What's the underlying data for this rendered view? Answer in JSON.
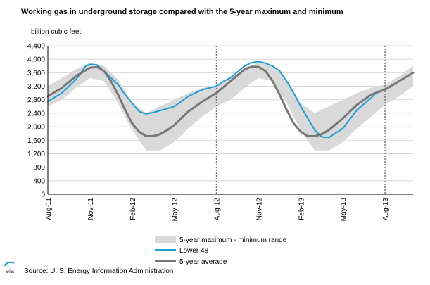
{
  "chart_data": {
    "type": "area",
    "title": "Working gas in underground storage compared with the 5-year maximum and minimum",
    "ylabel": "billion cubic feet",
    "xlabel": "",
    "ylim": [
      0,
      4400
    ],
    "yticks": [
      0,
      400,
      800,
      1200,
      1600,
      2000,
      2400,
      2800,
      3200,
      3600,
      4000,
      4400
    ],
    "ytick_labels": [
      "0",
      "400",
      "800",
      "1,200",
      "1,600",
      "2,000",
      "2,400",
      "2,800",
      "3,200",
      "3,600",
      "4,000",
      "4,400"
    ],
    "x_range": [
      0,
      26
    ],
    "x_unit": "months since Aug-11",
    "xticks": [
      {
        "x": 0,
        "label": "Aug-11"
      },
      {
        "x": 3,
        "label": "Nov-11"
      },
      {
        "x": 6,
        "label": "Feb-12"
      },
      {
        "x": 9,
        "label": "May-12"
      },
      {
        "x": 12,
        "label": "Aug-12"
      },
      {
        "x": 15,
        "label": "Nov-12"
      },
      {
        "x": 18,
        "label": "Feb-13"
      },
      {
        "x": 21,
        "label": "May-13"
      },
      {
        "x": 24,
        "label": "Aug-13"
      }
    ],
    "vertical_dividers": [
      12,
      24
    ],
    "grid": true,
    "legend_position": "bottom",
    "range_band": {
      "name": "5-year maximum - minimum range",
      "color": "#d9d9d9",
      "x": [
        0,
        1,
        2,
        3,
        4,
        5,
        6,
        7,
        8,
        9,
        10,
        11,
        12,
        13,
        14,
        15,
        16,
        17,
        18,
        19,
        20,
        21,
        22,
        23,
        24,
        25,
        26
      ],
      "max": [
        3200,
        3450,
        3700,
        3900,
        3800,
        3400,
        2700,
        2400,
        2600,
        2800,
        3000,
        3150,
        3200,
        3450,
        3700,
        3900,
        3800,
        3400,
        2700,
        2400,
        2600,
        2800,
        3000,
        3150,
        3250,
        3500,
        3800
      ],
      "min": [
        2600,
        2800,
        3150,
        3450,
        3350,
        2700,
        1900,
        1300,
        1300,
        1550,
        1950,
        2300,
        2600,
        2800,
        3150,
        3450,
        3350,
        2700,
        1900,
        1300,
        1300,
        1550,
        1950,
        2300,
        2650,
        2900,
        3200
      ]
    },
    "series": [
      {
        "name": "Lower 48",
        "color": "#1e9fd8",
        "x": [
          0,
          1,
          2,
          2.7,
          3,
          3.5,
          4,
          4.5,
          5,
          5.5,
          6,
          6.5,
          7,
          7.5,
          8,
          9,
          10,
          11,
          12,
          12.5,
          13,
          14,
          14.5,
          15,
          15.5,
          16,
          16.5,
          17,
          17.5,
          18,
          18.5,
          19,
          19.5,
          20,
          21,
          22,
          23,
          23.5
        ],
        "values": [
          2750,
          3000,
          3400,
          3800,
          3850,
          3830,
          3650,
          3450,
          3250,
          2950,
          2700,
          2450,
          2380,
          2420,
          2480,
          2600,
          2900,
          3100,
          3200,
          3350,
          3450,
          3800,
          3900,
          3930,
          3880,
          3800,
          3650,
          3350,
          3000,
          2600,
          2250,
          1900,
          1700,
          1680,
          1950,
          2500,
          2850,
          3050
        ]
      },
      {
        "name": "5-year average",
        "color": "#777777",
        "x": [
          0,
          1,
          2,
          3,
          3.5,
          4,
          4.5,
          5,
          5.5,
          6,
          6.5,
          7,
          7.5,
          8,
          8.5,
          9,
          10,
          11,
          12,
          13,
          14,
          14.5,
          15,
          15.5,
          16,
          16.5,
          17,
          17.5,
          18,
          18.5,
          19,
          19.5,
          20,
          21,
          22,
          23,
          24,
          25,
          26
        ],
        "values": [
          2900,
          3150,
          3500,
          3750,
          3770,
          3650,
          3350,
          2950,
          2500,
          2100,
          1850,
          1720,
          1720,
          1780,
          1900,
          2050,
          2450,
          2750,
          3000,
          3350,
          3700,
          3780,
          3770,
          3650,
          3350,
          2950,
          2500,
          2100,
          1850,
          1720,
          1720,
          1780,
          1900,
          2250,
          2650,
          2950,
          3100,
          3350,
          3600
        ]
      }
    ]
  },
  "source_text": "Source:  U. S. Energy Information Administration",
  "logo_text": "eia"
}
